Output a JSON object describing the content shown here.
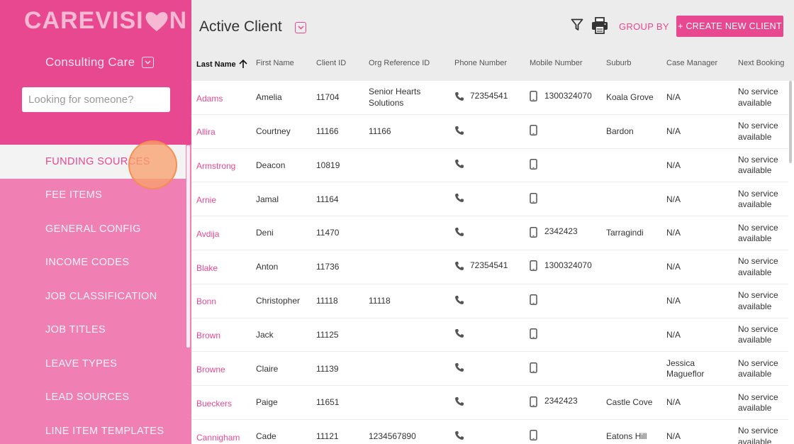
{
  "app": {
    "logo_text_left": "CAREVISI",
    "logo_text_right": "N",
    "org": "Consulting Care",
    "search_placeholder": "Looking for someone?"
  },
  "sidebar": {
    "items": [
      {
        "label": "FUNDING SOURCES",
        "active": true
      },
      {
        "label": "FEE ITEMS"
      },
      {
        "label": "GENERAL CONFIG"
      },
      {
        "label": "INCOME CODES"
      },
      {
        "label": "JOB CLASSIFICATION"
      },
      {
        "label": "JOB TITLES"
      },
      {
        "label": "LEAVE TYPES"
      },
      {
        "label": "LEAD SOURCES"
      },
      {
        "label": "LINE ITEM TEMPLATES"
      }
    ]
  },
  "header": {
    "title": "Active Client",
    "group_by": "GROUP BY",
    "create_button": "+ CREATE NEW CLIENT"
  },
  "table": {
    "columns": [
      "Last Name",
      "First Name",
      "Client ID",
      "Org Reference ID",
      "Phone Number",
      "Mobile Number",
      "Suburb",
      "Case Manager",
      "Next Booking"
    ],
    "rows": [
      {
        "last": "Adams",
        "first": "Amelia",
        "id": "11704",
        "org_ref": "Senior Hearts Solutions",
        "phone": "72354541",
        "mobile": "1300324070",
        "suburb": "Koala Grove",
        "manager": "N/A",
        "booking": "No service available"
      },
      {
        "last": "Allira",
        "first": "Courtney",
        "id": "11166",
        "org_ref": "11166",
        "phone": "",
        "mobile": "",
        "suburb": "Bardon",
        "manager": "N/A",
        "booking": "No service available"
      },
      {
        "last": "Armstrong",
        "first": "Deacon",
        "id": "10819",
        "org_ref": "",
        "phone": "",
        "mobile": "",
        "suburb": "",
        "manager": "N/A",
        "booking": "No service available"
      },
      {
        "last": "Arnie",
        "first": "Jamal",
        "id": "11164",
        "org_ref": "",
        "phone": "",
        "mobile": "",
        "suburb": "",
        "manager": "N/A",
        "booking": "No service available"
      },
      {
        "last": "Avdija",
        "first": "Deni",
        "id": "11470",
        "org_ref": "",
        "phone": "",
        "mobile": "2342423",
        "suburb": "Tarragindi",
        "manager": "N/A",
        "booking": "No service available"
      },
      {
        "last": "Blake",
        "first": "Anton",
        "id": "11736",
        "org_ref": "",
        "phone": "72354541",
        "mobile": "1300324070",
        "suburb": "",
        "manager": "N/A",
        "booking": "No service available"
      },
      {
        "last": "Bonn",
        "first": "Christopher",
        "id": "11118",
        "org_ref": "11118",
        "phone": "",
        "mobile": "",
        "suburb": "",
        "manager": "N/A",
        "booking": "No service available"
      },
      {
        "last": "Brown",
        "first": "Jack",
        "id": "11125",
        "org_ref": "",
        "phone": "",
        "mobile": "",
        "suburb": "",
        "manager": "N/A",
        "booking": "No service available"
      },
      {
        "last": "Browne",
        "first": "Claire",
        "id": "11139",
        "org_ref": "",
        "phone": "",
        "mobile": "",
        "suburb": "",
        "manager": "Jessica Magueflor",
        "booking": "No service available"
      },
      {
        "last": "Bueckers",
        "first": "Paige",
        "id": "11651",
        "org_ref": "",
        "phone": "",
        "mobile": "2342423",
        "suburb": "Castle Cove",
        "manager": "N/A",
        "booking": "No service available"
      },
      {
        "last": "Cannigham",
        "first": "Cade",
        "id": "11121",
        "org_ref": "1234567890",
        "phone": "",
        "mobile": "",
        "suburb": "Eatons Hill",
        "manager": "N/A",
        "booking": "No service available"
      }
    ]
  },
  "colors": {
    "brand_pink": "#e8488f",
    "sidebar_pink": "#f07fb3",
    "header_gray": "#ececec"
  }
}
